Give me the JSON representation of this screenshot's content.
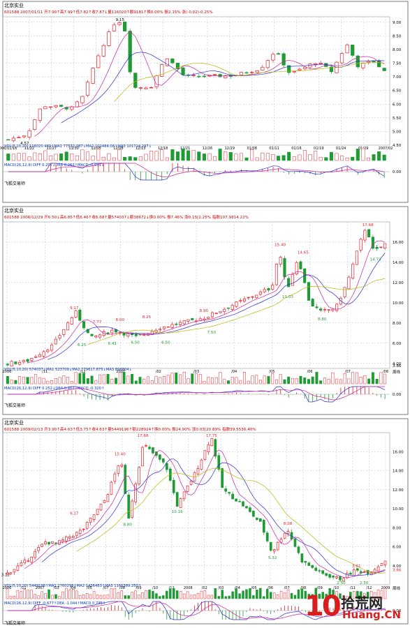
{
  "colors": {
    "up": "#e8212a",
    "down": "#1f9b34",
    "ma1": "#d0209a",
    "ma2": "#2a2ad8",
    "ma3": "#b8b800",
    "grid": "#b9c6df",
    "panel_bg": "#ffffff",
    "border": "#7a7a7a"
  },
  "branding": {
    "logo_digits": "10",
    "logo_cn": "拾荒网",
    "logo_url": "Huang.CN"
  },
  "panels": [
    {
      "name": "北京实业",
      "info": "601588 2007/01/11 开7.90↑高7.99↑低7.82↑收7.87↓量116020↑额9181↑换0.00% 振2.15% 涨(-0.02)-0.25%",
      "vol_info": "VOL(5,10,20) 116020.469↑MA1 77532.087↓MA2 101484.06↑MA3 101714.297↓",
      "macd_info": "MACD(26,12,9) DIFF 0.207↓DEA 0.253↑MACD -0.011↓",
      "watermark": "飞狐交易师",
      "annotations": [
        {
          "text": "9.15",
          "color": "#000"
        },
        {
          "text": "4.57",
          "color": "#000"
        }
      ],
      "y_ticks": [
        "9.00",
        "8.50",
        "8.00",
        "7.50",
        "7.00",
        "6.50",
        "6.00",
        "5.50",
        "5.00",
        "4.50"
      ],
      "x_labels": [
        "2006/11/16",
        "11/22",
        "11/27",
        "11/30",
        "12/05",
        "12/08",
        "12/13",
        "12/18",
        "12/21",
        "12/26",
        "12/29",
        "01/08",
        "01/11",
        "01/16",
        "01/19",
        "01/24",
        "01/29",
        "2007/02"
      ],
      "macd_zero": "0.00"
    },
    {
      "name": "北京实业",
      "info": "601588 2006/12/29 开6.50↓高6.85↑低6.46↑收6.68↑量574037↓额38672↓换0.00% 振7.46% 涨0.15[2.25% 指数107.9814.22%",
      "vol_info": "VOL(5,10,20) 574037↓MA1 523709↓MA2 779617.875↓MA3 896804↓",
      "macd_info": "MACD(26,12,9) DIFF 0.252↓DEA 0.462↓MACD -0.320↑",
      "watermark": "飞狐交易师",
      "annotations": [
        {
          "text": "9.17",
          "color": "#e8212a"
        },
        {
          "text": "7.77",
          "color": "#e8212a"
        },
        {
          "text": "8.00",
          "color": "#e8212a"
        },
        {
          "text": "8.25",
          "color": "#e8212a"
        },
        {
          "text": "8.90",
          "color": "#e8212a"
        },
        {
          "text": "6.25",
          "color": "#1f9b34"
        },
        {
          "text": "6.41",
          "color": "#1f9b34"
        },
        {
          "text": "6.50",
          "color": "#1f9b34"
        },
        {
          "text": "6.50",
          "color": "#1f9b34"
        },
        {
          "text": "7.50",
          "color": "#1f9b34"
        },
        {
          "text": "15.40",
          "color": "#e8212a"
        },
        {
          "text": "14.65",
          "color": "#e8212a"
        },
        {
          "text": "11.03",
          "color": "#1f9b34"
        },
        {
          "text": "8.80",
          "color": "#1f9b34"
        },
        {
          "text": "17.68",
          "color": "#e8212a"
        },
        {
          "text": "14.73",
          "color": "#1f9b34"
        },
        {
          "text": "3.86",
          "color": "#000"
        }
      ],
      "y_ticks": [
        "16.00",
        "14.00",
        "12.00",
        "10.00",
        "8.00",
        "6.00",
        "4.00"
      ],
      "x_labels": [
        "2006",
        "/11",
        "/12",
        "2007",
        "/02",
        "/03",
        "/04",
        "/05",
        "/06",
        "/07",
        "/08"
      ],
      "macd_zero": "0.00",
      "corner": "周线"
    },
    {
      "name": "北京实业",
      "info": "601588 2009/02/13 开3.90↑高4.63↑低3.75↑收4.63↑量5449196↑额228924↑换0.00% 振24.90% 涨0.03[20.89% 指数39.5536.40%",
      "vol_info": "VOL(5,10,20) 5449196↑MA1 1760298↑MA2 1436483↑MA3 1166389.250↑",
      "macd_info": "MACD(26,12,9) DIFF -0.677↑DEA -1.044↑MACD 0.735↑",
      "watermark": "飞狐交易师",
      "annotations": [
        {
          "text": "9.17",
          "color": "#e8212a"
        },
        {
          "text": "3.12",
          "color": "#000"
        },
        {
          "text": "15.40",
          "color": "#e8212a"
        },
        {
          "text": "17.68",
          "color": "#e8212a"
        },
        {
          "text": "8.80",
          "color": "#1f9b34"
        },
        {
          "text": "10.16",
          "color": "#1f9b34"
        },
        {
          "text": "17.75",
          "color": "#e8212a"
        },
        {
          "text": "5.32",
          "color": "#1f9b34"
        },
        {
          "text": "8.08",
          "color": "#e8212a"
        },
        {
          "text": "3.61",
          "color": "#e8212a"
        },
        {
          "text": "2.50",
          "color": "#1f9b34"
        },
        {
          "text": "2.50",
          "color": "#1f9b34"
        },
        {
          "text": "3.66",
          "color": "#e8212a"
        }
      ],
      "y_ticks": [
        "16.00",
        "14.00",
        "12.00",
        "10.00",
        "8.00",
        "6.00",
        "4.00"
      ],
      "x_labels": [
        "2006",
        "/11",
        "2007",
        "/03",
        "/04",
        "/05",
        "/07",
        "/08",
        "/09",
        "/10",
        "/12",
        "2008",
        "/02",
        "/03",
        "/04",
        "/05",
        "/06",
        "/07",
        "/08",
        "/09",
        "/10",
        "/11",
        "/12",
        "2009"
      ],
      "macd_zero": "0.00",
      "corner": "周线"
    }
  ],
  "chart_data": [
    {
      "type": "candlestick",
      "title": "北京实业 601588 日线",
      "ylim": [
        4.5,
        9.2
      ],
      "x": [
        "2006/11/16",
        "11/22",
        "11/27",
        "11/30",
        "12/05",
        "12/08",
        "12/13",
        "12/18",
        "12/21",
        "12/26",
        "12/29",
        "01/08",
        "01/11",
        "01/16",
        "01/19",
        "01/24",
        "01/29",
        "2007/02"
      ],
      "close": [
        4.57,
        5.9,
        5.85,
        6.3,
        8.4,
        9.15,
        6.6,
        7.7,
        7.0,
        7.0,
        7.2,
        7.9,
        7.1,
        7.5,
        7.1,
        7.75,
        7.5,
        7.87
      ],
      "series_names": []
    },
    {
      "type": "candlestick",
      "title": "北京实业 601588 周线",
      "ylim": [
        3.5,
        18.0
      ],
      "x": [
        "2006",
        "/11",
        "/12",
        "2007",
        "/02",
        "/03",
        "/04",
        "/05",
        "/06",
        "/07",
        "/08"
      ],
      "close": [
        3.86,
        5.0,
        7.0,
        6.8,
        7.0,
        8.0,
        9.5,
        11.5,
        15.4,
        10.0,
        15.0
      ],
      "highs_labeled": [
        9.17,
        7.77,
        8.0,
        8.25,
        8.9,
        15.4,
        14.65,
        17.68
      ],
      "lows_labeled": [
        6.25,
        6.41,
        6.5,
        6.5,
        7.5,
        11.03,
        8.8,
        14.73
      ]
    },
    {
      "type": "candlestick",
      "title": "北京实业 601588 周线",
      "ylim": [
        2.0,
        18.0
      ],
      "x": [
        "2006",
        "/11",
        "2007",
        "/03",
        "/04",
        "/05",
        "/07",
        "/08",
        "/09",
        "/10",
        "/12",
        "2008",
        "/02",
        "/03",
        "/04",
        "/05",
        "/06",
        "/07",
        "/08",
        "/09",
        "/10",
        "/11",
        "/12",
        "2009"
      ],
      "close": [
        3.2,
        4.6,
        8.5,
        6.0,
        9.8,
        12.5,
        15.0,
        16.0,
        15.0,
        12.5,
        10.5,
        14.5,
        16.5,
        12.5,
        11.5,
        10.0,
        8.5,
        6.8,
        5.5,
        4.5,
        3.2,
        2.8,
        3.4,
        4.63
      ],
      "highs_labeled": [
        9.17,
        15.4,
        17.68,
        17.75,
        8.08,
        3.61,
        3.66
      ],
      "lows_labeled": [
        3.12,
        8.8,
        10.16,
        5.32,
        2.5,
        2.5
      ]
    }
  ]
}
